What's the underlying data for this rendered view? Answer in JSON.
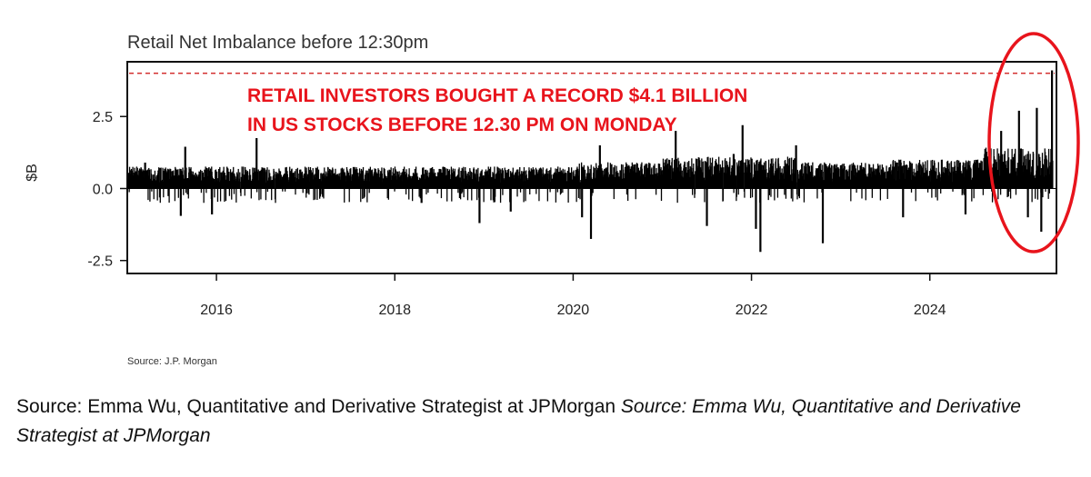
{
  "chart_data": {
    "type": "bar",
    "title": "Retail Net Imbalance before 12:30pm",
    "ylabel": "$B",
    "xlabel": "",
    "x_range": [
      2015.0,
      2025.42
    ],
    "ylim": [
      -2.95,
      4.4
    ],
    "yticks": [
      -2.5,
      0.0,
      2.5
    ],
    "ytick_labels": [
      "-2.5",
      "0.0",
      "2.5"
    ],
    "xticks": [
      2016,
      2018,
      2020,
      2022,
      2024
    ],
    "xtick_labels": [
      "2016",
      "2018",
      "2020",
      "2022",
      "2024"
    ],
    "record_line": {
      "value": 4.0,
      "style": "dashed",
      "color": "#d32f2f"
    },
    "annotation": {
      "lines": [
        "RETAIL INVESTORS BOUGHT A RECORD $4.1 BILLION",
        "IN US STOCKS BEFORE 12.30 PM ON MONDAY"
      ],
      "color": "#e8141c"
    },
    "highlight": {
      "shape": "ellipse",
      "color": "#e8141c",
      "x_from": 2024.7,
      "x_to": 2025.42
    },
    "series": [
      {
        "name": "Retail Net Imbalance",
        "note": "daily values; envelope approximated from the figure",
        "spikes": [
          {
            "x": 2015.2,
            "value": 0.9
          },
          {
            "x": 2015.6,
            "value": -0.95
          },
          {
            "x": 2015.65,
            "value": 1.45
          },
          {
            "x": 2015.95,
            "value": -0.9
          },
          {
            "x": 2016.45,
            "value": 1.75
          },
          {
            "x": 2018.3,
            "value": -0.5
          },
          {
            "x": 2018.95,
            "value": -1.2
          },
          {
            "x": 2019.3,
            "value": -0.8
          },
          {
            "x": 2020.1,
            "value": -1.0
          },
          {
            "x": 2020.2,
            "value": -1.75
          },
          {
            "x": 2020.3,
            "value": 1.5
          },
          {
            "x": 2021.15,
            "value": 2.0
          },
          {
            "x": 2021.5,
            "value": -1.3
          },
          {
            "x": 2021.8,
            "value": 1.2
          },
          {
            "x": 2021.9,
            "value": 2.2
          },
          {
            "x": 2022.05,
            "value": -1.4
          },
          {
            "x": 2022.1,
            "value": -2.2
          },
          {
            "x": 2022.5,
            "value": 1.5
          },
          {
            "x": 2022.8,
            "value": -1.9
          },
          {
            "x": 2023.7,
            "value": -1.0
          },
          {
            "x": 2024.4,
            "value": -0.9
          },
          {
            "x": 2024.8,
            "value": 2.0
          },
          {
            "x": 2025.0,
            "value": 2.7
          },
          {
            "x": 2025.1,
            "value": -1.0
          },
          {
            "x": 2025.2,
            "value": 2.8
          },
          {
            "x": 2025.25,
            "value": -1.5
          },
          {
            "x": 2025.37,
            "value": 4.1
          }
        ]
      }
    ],
    "source_note": "Source: J.P. Morgan"
  },
  "caption": {
    "text": "Source: Emma Wu, Quantitative and Derivative Strategist at JPMorgan ",
    "italic": "Source: Emma Wu, Quantitative and Derivative Strategist at JPMorgan"
  }
}
